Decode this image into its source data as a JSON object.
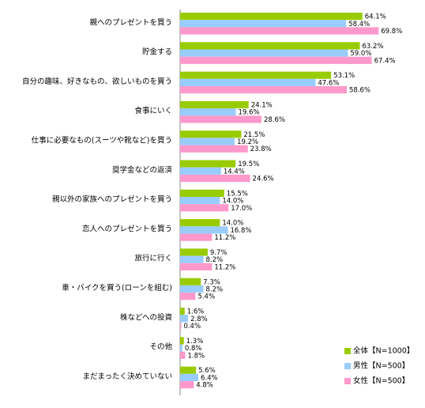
{
  "chart_data": {
    "type": "bar",
    "orientation": "horizontal",
    "categories": [
      "親へのプレゼントを買う",
      "貯金する",
      "自分の趣味、好きなもの、欲しいものを買う",
      "食事にいく",
      "仕事に必要なもの(スーツや靴など)を買う",
      "奨学金などの返済",
      "親以外の家族へのプレゼントを買う",
      "恋人へのプレゼントを買う",
      "旅行に行く",
      "車・バイクを買う(ローンを組む)",
      "株などへの投資",
      "その他",
      "まだまったく決めていない"
    ],
    "series": [
      {
        "name": "全体【N=1000】",
        "color": "#99cc00",
        "values": [
          64.1,
          63.2,
          53.1,
          24.1,
          21.5,
          19.5,
          15.5,
          14.0,
          9.7,
          7.3,
          1.6,
          1.3,
          5.6
        ],
        "value_labels": [
          "64.1%",
          "63.2%",
          "53.1%",
          "24.1%",
          "21.5%",
          "19.5%",
          "15.5%",
          "14.0%",
          "9.7%",
          "7.3%",
          "1.6%",
          "1.3%",
          "5.6%"
        ]
      },
      {
        "name": "男性【N=500】",
        "color": "#99ccff",
        "values": [
          58.4,
          59.0,
          47.6,
          19.6,
          19.2,
          14.4,
          14.0,
          16.8,
          8.2,
          8.2,
          2.8,
          0.8,
          6.4
        ],
        "value_labels": [
          "58.4%",
          "59.0%",
          "47.6%",
          "19.6%",
          "19.2%",
          "14.4%",
          "14.0%",
          "16.8%",
          "8.2%",
          "8.2%",
          "2.8%",
          "0.8%",
          "6.4%"
        ]
      },
      {
        "name": "女性【N=500】",
        "color": "#ff99cc",
        "values": [
          69.8,
          67.4,
          58.6,
          28.6,
          23.8,
          24.6,
          17.0,
          11.2,
          11.2,
          5.4,
          0.4,
          1.8,
          4.8
        ],
        "value_labels": [
          "69.8%",
          "67.4%",
          "58.6%",
          "28.6%",
          "23.8%",
          "24.6%",
          "17.0%",
          "11.2%",
          "11.2%",
          "5.4%",
          "0.4%",
          "1.8%",
          "4.8%"
        ]
      }
    ],
    "legend": "bottom-right"
  }
}
